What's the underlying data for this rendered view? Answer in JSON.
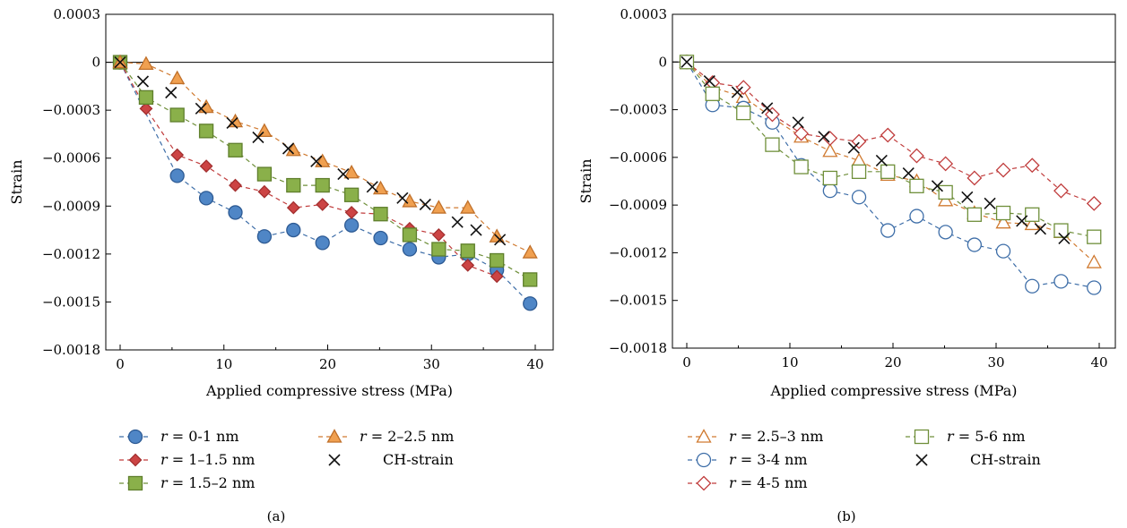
{
  "chart_data": [
    {
      "panel_label": "(a)",
      "type": "line",
      "xlabel": "Applied compressive stress (MPa)",
      "ylabel": "Strain",
      "xlim": [
        -1,
        41
      ],
      "ylim": [
        -0.0018,
        0.0003
      ],
      "xticks": [
        0,
        10,
        20,
        30,
        40
      ],
      "xtick_labels": [
        "0",
        "10",
        "20",
        "30",
        "40"
      ],
      "yticks": [
        0.0003,
        0,
        -0.0003,
        -0.0006,
        -0.0009,
        -0.0012,
        -0.0015,
        -0.0018
      ],
      "ytick_labels": [
        "0.0003",
        "0",
        "−0.0003",
        "−0.0006",
        "−0.0009",
        "−0.0012",
        "−0.0015",
        "−0.0018"
      ],
      "grid": false,
      "legend_position": "bottom",
      "series": [
        {
          "name_pre": "r",
          "name_post": " = 0-1 nm",
          "marker": "circle",
          "color": "#4f86c6",
          "stroke": "#2e5b94",
          "filled": true,
          "line": "#3e6ea8",
          "x": [
            0,
            5.5,
            8.3,
            11.1,
            13.9,
            16.7,
            19.5,
            22.3,
            25.1,
            27.9,
            30.7,
            33.5,
            36.3,
            39.5
          ],
          "y": [
            0,
            -0.00071,
            -0.00085,
            -0.00094,
            -0.00109,
            -0.00105,
            -0.00113,
            -0.00102,
            -0.0011,
            -0.00117,
            -0.00122,
            -0.0012,
            -0.0013,
            -0.00151
          ]
        },
        {
          "name_pre": "r",
          "name_post": " = 1–1.5 nm",
          "marker": "diamond",
          "color": "#cc4444",
          "stroke": "#a32f2f",
          "filled": true,
          "line": "#c03c3c",
          "x": [
            0,
            2.5,
            5.5,
            8.3,
            11.1,
            13.9,
            16.7,
            19.5,
            22.3,
            25.1,
            27.9,
            30.7,
            33.5,
            36.3
          ],
          "y": [
            0,
            -0.00029,
            -0.00058,
            -0.00065,
            -0.00077,
            -0.00081,
            -0.00091,
            -0.00089,
            -0.00094,
            -0.00095,
            -0.00104,
            -0.00108,
            -0.00127,
            -0.00134
          ]
        },
        {
          "name_pre": "r",
          "name_post": " = 1.5–2 nm",
          "marker": "square",
          "color": "#8ab04a",
          "stroke": "#5f7f2c",
          "filled": true,
          "line": "#6f8f3a",
          "x": [
            0,
            2.5,
            5.5,
            8.3,
            11.1,
            13.9,
            16.7,
            19.5,
            22.3,
            25.1,
            27.9,
            30.7,
            33.5,
            36.3,
            39.5
          ],
          "y": [
            0,
            -0.00022,
            -0.00033,
            -0.00043,
            -0.00055,
            -0.0007,
            -0.00077,
            -0.00077,
            -0.00083,
            -0.00095,
            -0.00108,
            -0.00117,
            -0.00118,
            -0.00124,
            -0.00136
          ]
        },
        {
          "name_pre": "r",
          "name_post": " = 2–2.5 nm",
          "marker": "triangle",
          "color": "#f0a050",
          "stroke": "#c0702a",
          "filled": true,
          "line": "#d07a30",
          "x": [
            0,
            2.5,
            5.5,
            8.3,
            11.1,
            13.9,
            16.7,
            19.5,
            22.3,
            25.1,
            27.9,
            30.7,
            33.5,
            36.3,
            39.5
          ],
          "y": [
            0,
            -1e-05,
            -0.0001,
            -0.00028,
            -0.00037,
            -0.00043,
            -0.00055,
            -0.00062,
            -0.00069,
            -0.00079,
            -0.00087,
            -0.00091,
            -0.00091,
            -0.00109,
            -0.00119
          ]
        },
        {
          "name": "CH-strain",
          "marker": "x",
          "color": "#111111",
          "stroke": "#111111",
          "filled": false,
          "line": null,
          "x": [
            0,
            2.2,
            4.9,
            7.8,
            10.8,
            13.3,
            16.2,
            18.9,
            21.5,
            24.3,
            27.2,
            29.4,
            32.5,
            34.3,
            36.6
          ],
          "y": [
            0,
            -0.00012,
            -0.00019,
            -0.00029,
            -0.00038,
            -0.00047,
            -0.00054,
            -0.00062,
            -0.0007,
            -0.00078,
            -0.00085,
            -0.00089,
            -0.001,
            -0.00105,
            -0.00111
          ]
        }
      ]
    },
    {
      "panel_label": "(b)",
      "type": "line",
      "xlabel": "Applied compressive stress (MPa)",
      "ylabel": "Strain",
      "xlim": [
        -1,
        41
      ],
      "ylim": [
        -0.0018,
        0.0003
      ],
      "xticks": [
        0,
        10,
        20,
        30,
        40
      ],
      "xtick_labels": [
        "0",
        "10",
        "20",
        "30",
        "40"
      ],
      "yticks": [
        0.0003,
        0,
        -0.0003,
        -0.0006,
        -0.0009,
        -0.0012,
        -0.0015,
        -0.0018
      ],
      "ytick_labels": [
        "0.0003",
        "0",
        "−0.0003",
        "−0.0006",
        "−0.0009",
        "−0.0012",
        "−0.0015",
        "−0.0018"
      ],
      "grid": false,
      "legend_position": "bottom",
      "series": [
        {
          "name_pre": "r",
          "name_post": " = 2.5–3 nm",
          "marker": "triangle",
          "color": "#d07a30",
          "stroke": "#d07a30",
          "filled": false,
          "line": "#d07a30",
          "x": [
            0,
            2.5,
            5.5,
            8.3,
            11.1,
            13.9,
            16.7,
            19.5,
            22.3,
            25.1,
            27.9,
            30.7,
            33.5,
            36.3,
            39.5
          ],
          "y": [
            0,
            -0.00016,
            -0.00022,
            -0.00035,
            -0.00047,
            -0.00056,
            -0.00062,
            -0.00071,
            -0.00075,
            -0.00087,
            -0.00095,
            -0.00101,
            -0.00102,
            -0.00107,
            -0.00126
          ]
        },
        {
          "name_pre": "r",
          "name_post": " = 3-4 nm",
          "marker": "circle",
          "color": "#3e6ea8",
          "stroke": "#3e6ea8",
          "filled": false,
          "line": "#3e6ea8",
          "x": [
            0,
            2.5,
            5.5,
            8.3,
            11.1,
            13.9,
            16.7,
            19.5,
            22.3,
            25.1,
            27.9,
            30.7,
            33.5,
            36.3,
            39.5
          ],
          "y": [
            0,
            -0.00027,
            -0.00029,
            -0.00038,
            -0.00065,
            -0.00081,
            -0.00085,
            -0.00106,
            -0.00097,
            -0.00107,
            -0.00115,
            -0.00119,
            -0.00141,
            -0.00138,
            -0.00142
          ]
        },
        {
          "name_pre": "r",
          "name_post": " = 4-5 nm",
          "marker": "diamond",
          "color": "#c03c3c",
          "stroke": "#c03c3c",
          "filled": false,
          "line": "#c03c3c",
          "x": [
            0,
            2.5,
            5.5,
            8.3,
            11.1,
            13.9,
            16.7,
            19.5,
            22.3,
            25.1,
            27.9,
            30.7,
            33.5,
            36.3,
            39.5
          ],
          "y": [
            0,
            -0.00013,
            -0.00016,
            -0.00033,
            -0.00045,
            -0.00048,
            -0.0005,
            -0.00046,
            -0.00059,
            -0.00064,
            -0.00073,
            -0.00068,
            -0.00065,
            -0.00081,
            -0.00089
          ]
        },
        {
          "name_pre": "r",
          "name_post": " = 5-6 nm",
          "marker": "square",
          "color": "#6f8f3a",
          "stroke": "#6f8f3a",
          "filled": false,
          "line": "#6f8f3a",
          "x": [
            0,
            2.5,
            5.5,
            8.3,
            11.1,
            13.9,
            16.7,
            19.5,
            22.3,
            25.1,
            27.9,
            30.7,
            33.5,
            36.3,
            39.5
          ],
          "y": [
            0,
            -0.0002,
            -0.00032,
            -0.00052,
            -0.00066,
            -0.00073,
            -0.00069,
            -0.00069,
            -0.00078,
            -0.00082,
            -0.00096,
            -0.00095,
            -0.00096,
            -0.00106,
            -0.0011
          ]
        },
        {
          "name": "CH-strain",
          "marker": "x",
          "color": "#111111",
          "stroke": "#111111",
          "filled": false,
          "line": null,
          "x": [
            0,
            2.2,
            4.9,
            7.8,
            10.8,
            13.3,
            16.2,
            18.9,
            21.5,
            24.3,
            27.2,
            29.4,
            32.5,
            34.3,
            36.6
          ],
          "y": [
            0,
            -0.00012,
            -0.00019,
            -0.00029,
            -0.00038,
            -0.00047,
            -0.00054,
            -0.00062,
            -0.0007,
            -0.00078,
            -0.00085,
            -0.00089,
            -0.001,
            -0.00105,
            -0.00111
          ]
        }
      ]
    }
  ]
}
